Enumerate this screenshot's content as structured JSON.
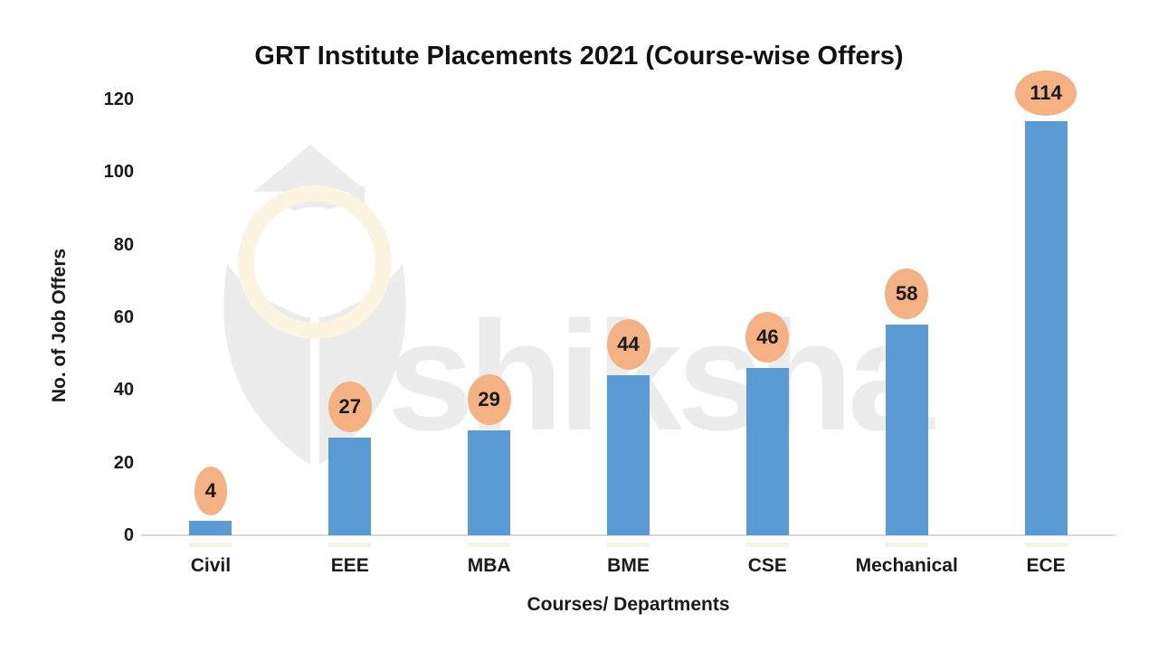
{
  "watermark": {
    "text": "shiksha"
  },
  "chart_data": {
    "type": "bar",
    "title": "GRT Institute Placements 2021 (Course-wise Offers)",
    "categories": [
      "Civil",
      "EEE",
      "MBA",
      "BME",
      "CSE",
      "Mechanical",
      "ECE"
    ],
    "values": [
      4,
      27,
      29,
      44,
      46,
      58,
      114
    ],
    "data_labels": [
      "4",
      "27",
      "29",
      "44",
      "46",
      "58",
      "114"
    ],
    "xlabel": "Courses/ Departments",
    "ylabel": "No. of Job Offers",
    "ylim": [
      0,
      120
    ],
    "yticks": [
      0,
      20,
      40,
      60,
      80,
      100,
      120
    ],
    "grid": false,
    "legend": null,
    "colors": {
      "bar": "#5B9BD5",
      "data_label_bubble": "#F4B183",
      "data_label_text": "#1A1A1A",
      "axis_line": "#D9D9D9",
      "text": "#1A1A1A",
      "watermark_gray": "#ECECEC",
      "watermark_cream": "#FBF4E1",
      "bar_reflection": "#F3EEDC"
    }
  }
}
